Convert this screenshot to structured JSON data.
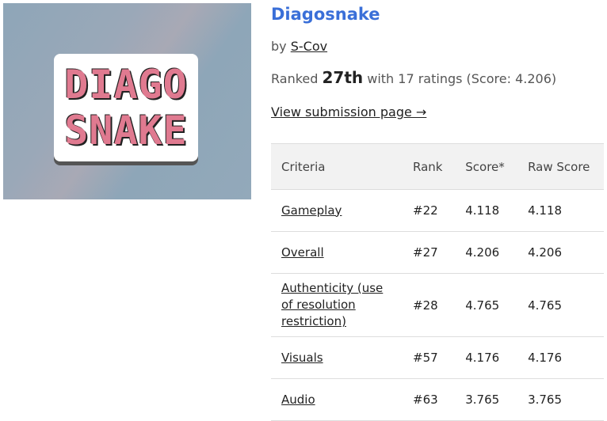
{
  "thumbnail": {
    "logo_lines": [
      "DIAGO",
      "SNAKE"
    ]
  },
  "title": "Diagosnake",
  "byline": {
    "prefix": "by",
    "author": "S-Cov"
  },
  "ranking": {
    "prefix": "Ranked",
    "rank": "27th",
    "suffix": "with 17 ratings (Score: 4.206)"
  },
  "link": "View submission page →",
  "table": {
    "headers": [
      "Criteria",
      "Rank",
      "Score*",
      "Raw Score"
    ],
    "rows": [
      [
        "Gameplay",
        "#22",
        "4.118",
        "4.118"
      ],
      [
        "Overall",
        "#27",
        "4.206",
        "4.206"
      ],
      [
        "Authenticity (use of resolution restriction)",
        "#28",
        "4.765",
        "4.765"
      ],
      [
        "Visuals",
        "#57",
        "4.176",
        "4.176"
      ],
      [
        "Audio",
        "#63",
        "3.765",
        "3.765"
      ]
    ]
  }
}
